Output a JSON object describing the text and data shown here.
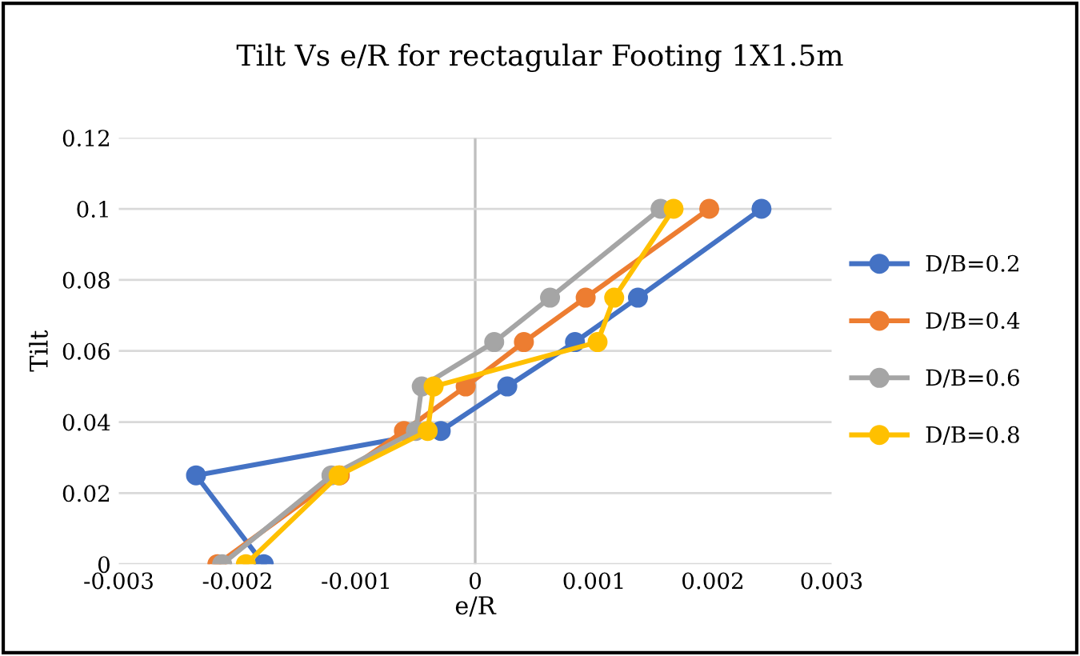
{
  "chart_data": {
    "type": "line",
    "title": "Tilt Vs e/R for rectagular Footing 1X1.5m",
    "xlabel": "e/R",
    "ylabel": "Tilt",
    "xlim": [
      -0.003,
      0.003
    ],
    "xticks": [
      {
        "value": -0.003,
        "label": "-0.003"
      },
      {
        "value": -0.002,
        "label": "-0.002"
      },
      {
        "value": -0.001,
        "label": "-0.001"
      },
      0,
      0.001,
      0.002,
      0.003
    ],
    "ylim": [
      0,
      0.12
    ],
    "yticks": [
      0,
      0.02,
      0.04,
      0.06,
      0.08,
      0.1,
      0.12
    ],
    "grid": "y",
    "legend": "right",
    "marker": "circle",
    "line_style": "solid",
    "series": [
      {
        "name": "D/B=0.2",
        "color": "#4472c4",
        "x": [
          -0.00178,
          -0.00235,
          -0.00029,
          0.00027,
          0.00084,
          0.00137,
          0.00241
        ],
        "values": [
          0,
          0.025,
          0.0375,
          0.05,
          0.0625,
          0.075,
          0.1
        ]
      },
      {
        "name": "D/B=0.4",
        "color": "#ed7d31",
        "x": [
          -0.00217,
          -0.00114,
          -0.0006,
          -8e-05,
          0.00041,
          0.00093,
          0.00197
        ],
        "values": [
          0,
          0.025,
          0.0375,
          0.05,
          0.0625,
          0.075,
          0.1
        ]
      },
      {
        "name": "D/B=0.6",
        "color": "#a5a5a5",
        "x": [
          -0.00213,
          -0.00121,
          -0.0005,
          -0.00045,
          0.00016,
          0.00063,
          0.00156
        ],
        "values": [
          0,
          0.025,
          0.0375,
          0.05,
          0.0625,
          0.075,
          0.1
        ]
      },
      {
        "name": "D/B=0.8",
        "color": "#ffc000",
        "x": [
          -0.00193,
          -0.00115,
          -0.0004,
          -0.00035,
          0.00103,
          0.00117,
          0.00167
        ],
        "values": [
          0,
          0.025,
          0.0375,
          0.05,
          0.0625,
          0.075,
          0.1
        ]
      }
    ]
  }
}
